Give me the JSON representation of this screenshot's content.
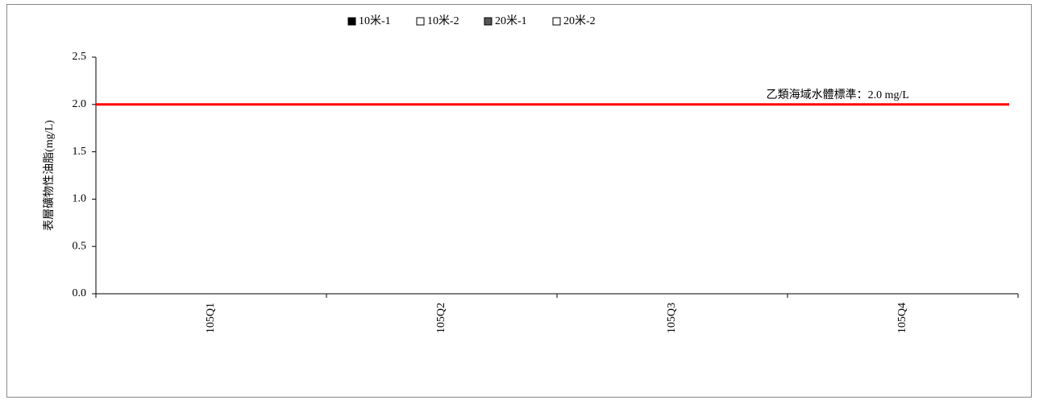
{
  "chart_data": {
    "type": "bar",
    "y_label": "表層礦物性油脂(mg/L)",
    "categories": [
      "105Q1",
      "105Q2",
      "105Q3",
      "105Q4"
    ],
    "series": [
      {
        "name": "10米-1",
        "color": "#000000",
        "values": [
          null,
          null,
          null,
          null
        ]
      },
      {
        "name": "10米-2",
        "color": "#ffffff",
        "values": [
          null,
          null,
          null,
          null
        ]
      },
      {
        "name": "20米-1",
        "color": "#555555",
        "values": [
          null,
          null,
          null,
          null
        ]
      },
      {
        "name": "20米-2",
        "color": "#ffffff",
        "values": [
          null,
          null,
          null,
          null
        ]
      }
    ],
    "ylim": [
      0,
      2.5
    ],
    "yticks": [
      {
        "value": 0,
        "label": "0.0"
      },
      0.5,
      {
        "value": 1,
        "label": "1.0"
      },
      1.5,
      {
        "value": 2,
        "label": "2.0"
      },
      2.5
    ],
    "reference_line": {
      "value": 2.0,
      "label": "乙類海域水體標準：2.0 mg/L",
      "color": "#ff0000"
    },
    "legend": "top"
  }
}
